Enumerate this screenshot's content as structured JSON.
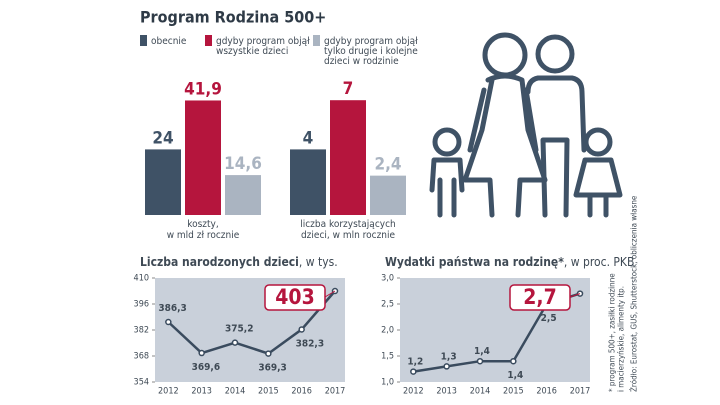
{
  "title": "Program Rodzina 500+",
  "legend": [
    {
      "name": [
        "obecnie"
      ],
      "color": "#3f5266"
    },
    {
      "name": [
        "gdyby program objął",
        "wszystkie dzieci"
      ],
      "color": "#b5153d"
    },
    {
      "name": [
        "gdyby program objął",
        "tylko drugie i kolejne",
        "dzieci w rodzinie"
      ],
      "color": "#aab4c1"
    }
  ],
  "footnote": [
    "* program 500+, zasiłki rodzinne",
    "i macierzyńskie, alimenty itp."
  ],
  "source": "Źródło: Eurostat, GUS, Shutterstock, obliczenia własne",
  "chart_data": [
    {
      "type": "bar",
      "values": [
        24,
        41.9,
        14.6
      ],
      "value_labels": [
        "24",
        "41,9",
        "14,6"
      ],
      "ylim": [
        0,
        45
      ],
      "xlabel": [
        "koszty,",
        "w mld zł rocznie"
      ]
    },
    {
      "type": "bar",
      "values": [
        4,
        7,
        2.4
      ],
      "value_labels": [
        "4",
        "7",
        "2,4"
      ],
      "ylim": [
        0,
        7.5
      ],
      "xlabel": [
        "liczba korzystających",
        "dzieci, w mln rocznie"
      ]
    },
    {
      "type": "line",
      "title": "Liczba narodzonych dzieci",
      "unit": ", w tys.",
      "x": [
        2012,
        2013,
        2014,
        2015,
        2016,
        2017
      ],
      "xlim": [
        2011.6,
        2017.3
      ],
      "xticks": [
        2012,
        2013,
        2014,
        2015,
        2016,
        2017
      ],
      "values": [
        386.3,
        369.6,
        375.2,
        369.3,
        382.3,
        403
      ],
      "value_labels": [
        "386,3",
        "369,6",
        "375,2",
        "369,3",
        "382,3",
        "403"
      ],
      "ylim": [
        354,
        410
      ],
      "yticks": [
        354,
        368,
        382,
        396,
        410
      ],
      "color": "#3a4b5e",
      "highlight_color": "#b5153d"
    },
    {
      "type": "line",
      "title": "Wydatki państwa na rodzinę*",
      "unit": ", w proc. PKB",
      "x": [
        2012,
        2013,
        2014,
        2015,
        2016,
        2017
      ],
      "xlim": [
        2011.6,
        2017.3
      ],
      "xticks": [
        2012,
        2013,
        2014,
        2015,
        2016,
        2017
      ],
      "values": [
        1.2,
        1.3,
        1.4,
        1.4,
        2.5,
        2.7
      ],
      "value_labels": [
        "1,2",
        "1,3",
        "1,4",
        "1,4",
        "2,5",
        "2,7"
      ],
      "ylim": [
        1,
        3
      ],
      "yticks": [
        {
          "value": 1,
          "label": "1,0"
        },
        {
          "value": 1.5,
          "label": "1,5"
        },
        {
          "value": 2,
          "label": "2,0"
        },
        {
          "value": 2.5,
          "label": "2,5"
        },
        {
          "value": 3,
          "label": "3,0"
        }
      ],
      "color": "#3a4b5e",
      "highlight_color": "#b5153d"
    }
  ]
}
